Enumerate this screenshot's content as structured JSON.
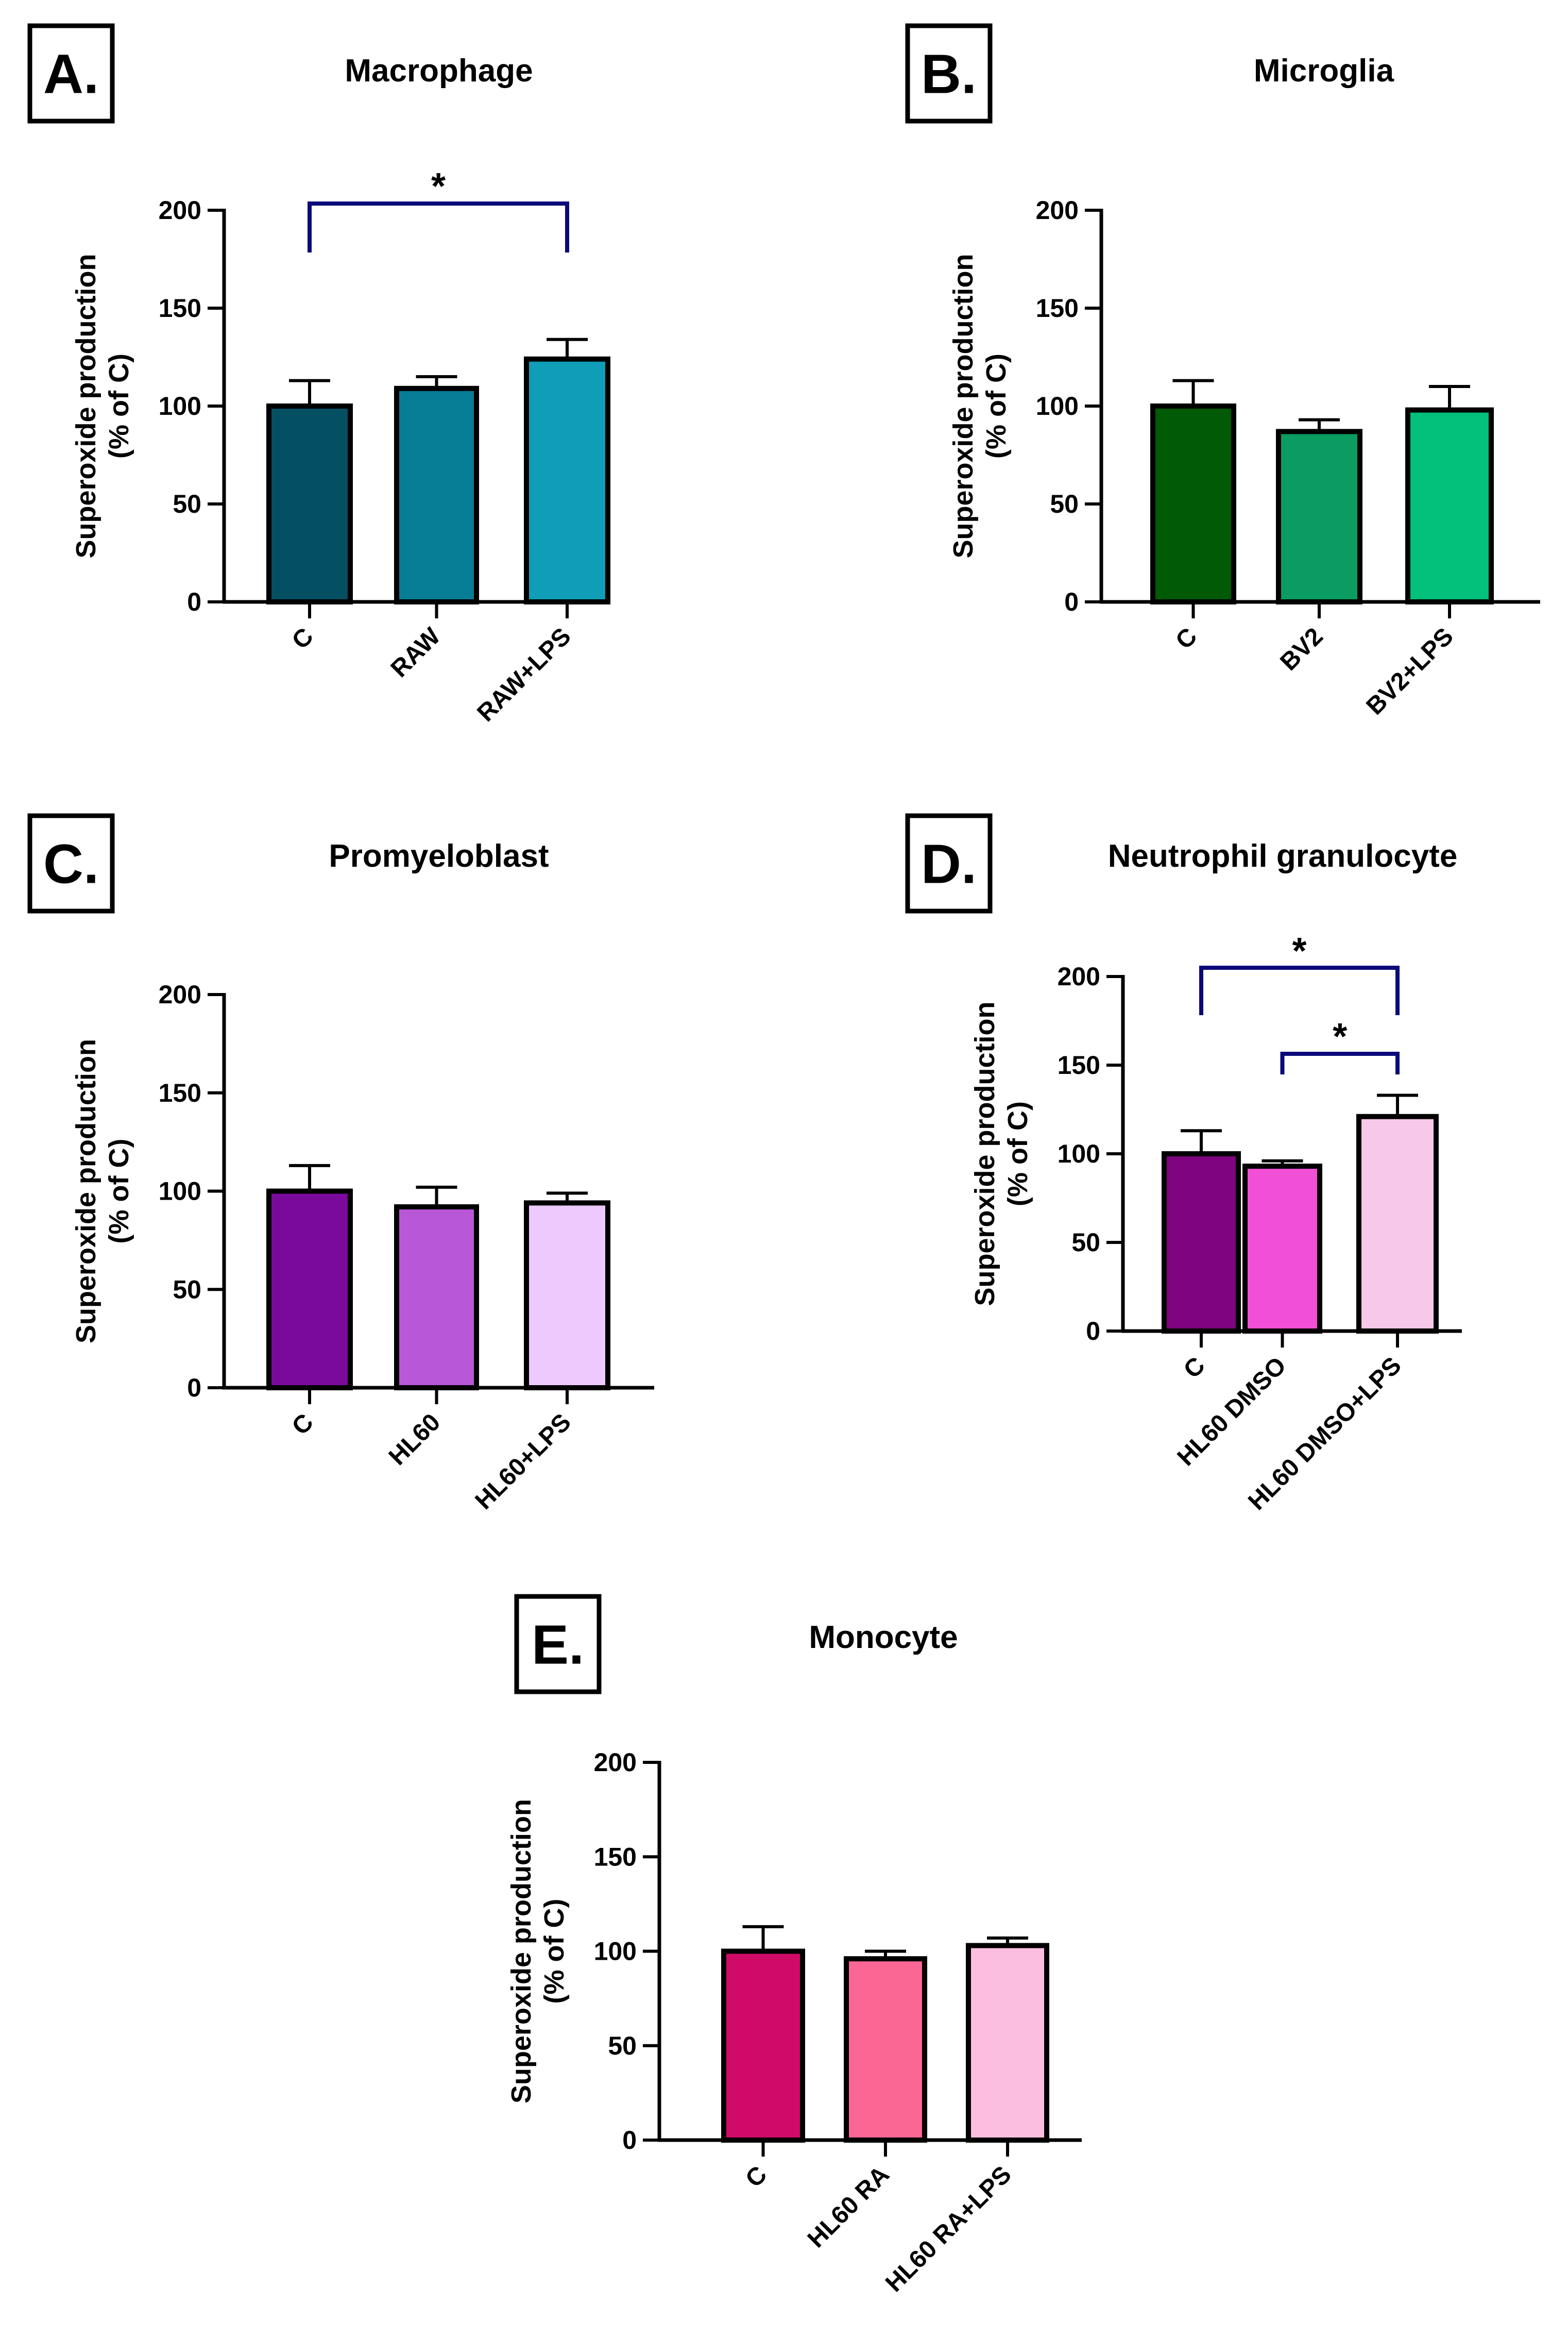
{
  "chart_data": [
    {
      "type": "bar",
      "panel": "A.",
      "title": "Macrophage",
      "categories": [
        "C",
        "RAW",
        "RAW+LPS"
      ],
      "values": [
        100,
        109,
        124
      ],
      "errors": [
        13,
        6,
        10
      ],
      "colors": [
        "#054f63",
        "#077d96",
        "#0f9db7"
      ],
      "ylabel": "Superoxide production",
      "ylabel2": "(% of C)",
      "ylim": [
        0,
        200
      ],
      "yticks": [
        "0",
        "50",
        "100",
        "150",
        "200"
      ],
      "significance": [
        {
          "from": 0,
          "to": 2,
          "label": "*"
        }
      ]
    },
    {
      "type": "bar",
      "panel": "B.",
      "title": "Microglia",
      "categories": [
        "C",
        "BV2",
        "BV2+LPS"
      ],
      "values": [
        100,
        87,
        98
      ],
      "errors": [
        13,
        6,
        12
      ],
      "colors": [
        "#015a05",
        "#0a9c60",
        "#03c07a"
      ],
      "ylabel": "Superoxide production",
      "ylabel2": "(% of C)",
      "ylim": [
        0,
        200
      ],
      "yticks": [
        "0",
        "50",
        "100",
        "150",
        "200"
      ],
      "significance": []
    },
    {
      "type": "bar",
      "panel": "C.",
      "title": "Promyeloblast",
      "categories": [
        "C",
        "HL60",
        "HL60+LPS"
      ],
      "values": [
        100,
        92,
        94
      ],
      "errors": [
        13,
        10,
        5
      ],
      "colors": [
        "#7a0a9c",
        "#b857d8",
        "#eccafd"
      ],
      "ylabel": "Superoxide production",
      "ylabel2": "(% of C)",
      "ylim": [
        0,
        200
      ],
      "yticks": [
        "0",
        "50",
        "100",
        "150",
        "200"
      ],
      "significance": []
    },
    {
      "type": "bar",
      "panel": "D.",
      "title": "Neutrophil granulocyte",
      "categories": [
        "C",
        "HL60 DMSO",
        "HL60 DMSO+LPS"
      ],
      "values": [
        100,
        93,
        121
      ],
      "errors": [
        13,
        3,
        12
      ],
      "colors": [
        "#7f047f",
        "#f14fd6",
        "#f7c8ea"
      ],
      "ylabel": "Superoxide production",
      "ylabel2": "(% of C)",
      "ylim": [
        0,
        200
      ],
      "yticks": [
        "0",
        "50",
        "100",
        "150",
        "200"
      ],
      "significance": [
        {
          "from": 0,
          "to": 2,
          "label": "*"
        },
        {
          "from": 1,
          "to": 2,
          "label": "*"
        }
      ]
    },
    {
      "type": "bar",
      "panel": "E.",
      "title": "Monocyte",
      "categories": [
        "C",
        "HL60 RA",
        "HL60 RA+LPS"
      ],
      "values": [
        100,
        96,
        103
      ],
      "errors": [
        13,
        4,
        4
      ],
      "colors": [
        "#cf0b67",
        "#fb6795",
        "#fcbee0"
      ],
      "ylabel": "Superoxide production",
      "ylabel2": "(% of C)",
      "ylim": [
        0,
        200
      ],
      "yticks": [
        "0",
        "50",
        "100",
        "150",
        "200"
      ],
      "significance": []
    }
  ]
}
